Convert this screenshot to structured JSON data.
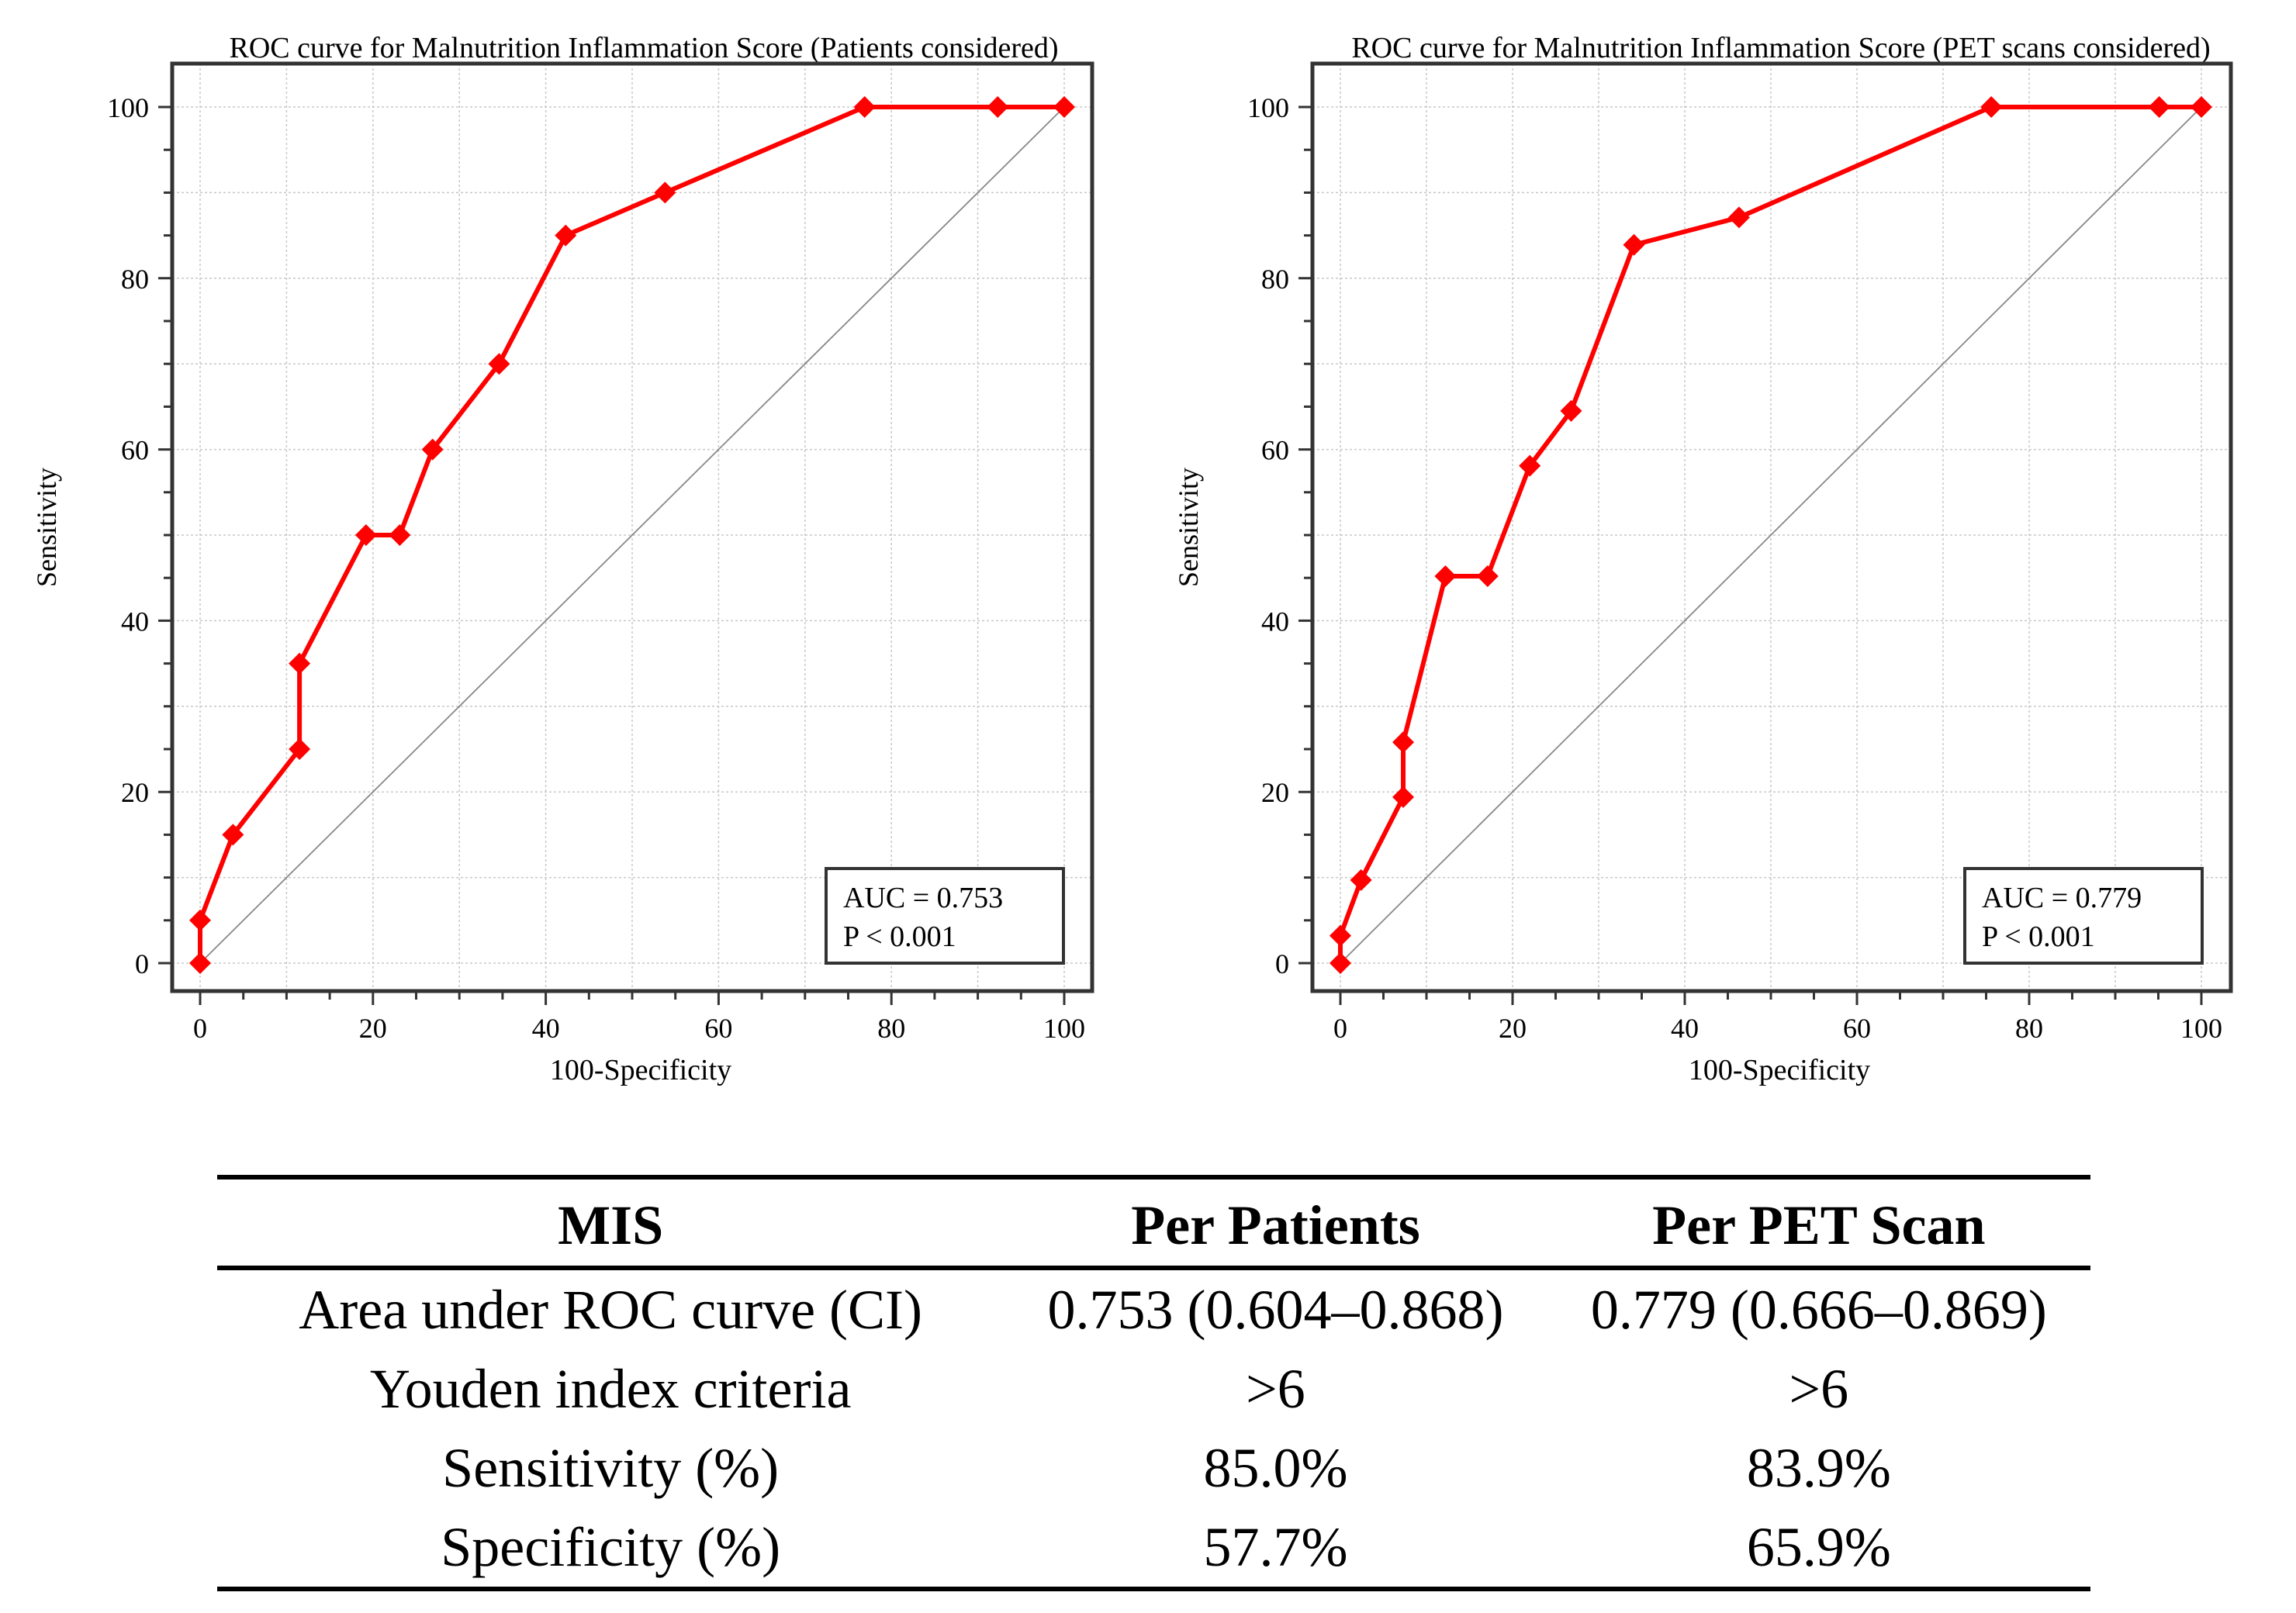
{
  "chart_data": [
    {
      "type": "line",
      "title": "ROC curve for Malnutrition Inflammation Score (Patients considered)",
      "xlabel": "100-Specificity",
      "ylabel": "Sensitivity",
      "xlim": [
        0,
        100
      ],
      "ylim": [
        0,
        100
      ],
      "xticks": [
        0,
        20,
        40,
        60,
        80,
        100
      ],
      "yticks": [
        0,
        20,
        40,
        60,
        80,
        100
      ],
      "grid": true,
      "reference_line": "diagonal",
      "series": [
        {
          "name": "ROC",
          "color": "#ff0000",
          "x": [
            0,
            0,
            3.8,
            11.5,
            11.5,
            19.2,
            23.1,
            26.9,
            34.6,
            42.3,
            53.8,
            76.9,
            92.3,
            100
          ],
          "y": [
            0,
            5,
            15,
            25,
            35,
            50,
            50,
            60,
            70,
            85,
            90,
            100,
            100,
            100
          ]
        }
      ],
      "annotation": {
        "auc": "AUC = 0.753",
        "p": "P < 0.001"
      }
    },
    {
      "type": "line",
      "title": "ROC curve for Malnutrition Inflammation Score (PET scans considered)",
      "xlabel": "100-Specificity",
      "ylabel": "Sensitivity",
      "xlim": [
        0,
        100
      ],
      "ylim": [
        0,
        100
      ],
      "xticks": [
        0,
        20,
        40,
        60,
        80,
        100
      ],
      "yticks": [
        0,
        20,
        40,
        60,
        80,
        100
      ],
      "grid": true,
      "reference_line": "diagonal",
      "series": [
        {
          "name": "ROC",
          "color": "#ff0000",
          "x": [
            0,
            0,
            2.4,
            7.3,
            7.3,
            12.2,
            17.1,
            22.0,
            26.8,
            34.1,
            46.3,
            75.6,
            95.1,
            100
          ],
          "y": [
            0,
            3.2,
            9.7,
            19.4,
            25.8,
            45.2,
            45.2,
            58.1,
            64.5,
            83.9,
            87.1,
            100,
            100,
            100
          ]
        }
      ],
      "annotation": {
        "auc": "AUC = 0.779",
        "p": "P < 0.001"
      }
    }
  ],
  "table": {
    "headers": [
      "MIS",
      "Per Patients",
      "Per PET Scan"
    ],
    "rows": [
      [
        "Area under ROC curve (CI)",
        "0.753 (0.604–0.868)",
        "0.779 (0.666–0.869)"
      ],
      [
        "Youden index criteria",
        ">6",
        ">6"
      ],
      [
        "Sensitivity (%)",
        "85.0%",
        "83.9%"
      ],
      [
        "Specificity (%)",
        "57.7%",
        "65.9%"
      ]
    ]
  }
}
